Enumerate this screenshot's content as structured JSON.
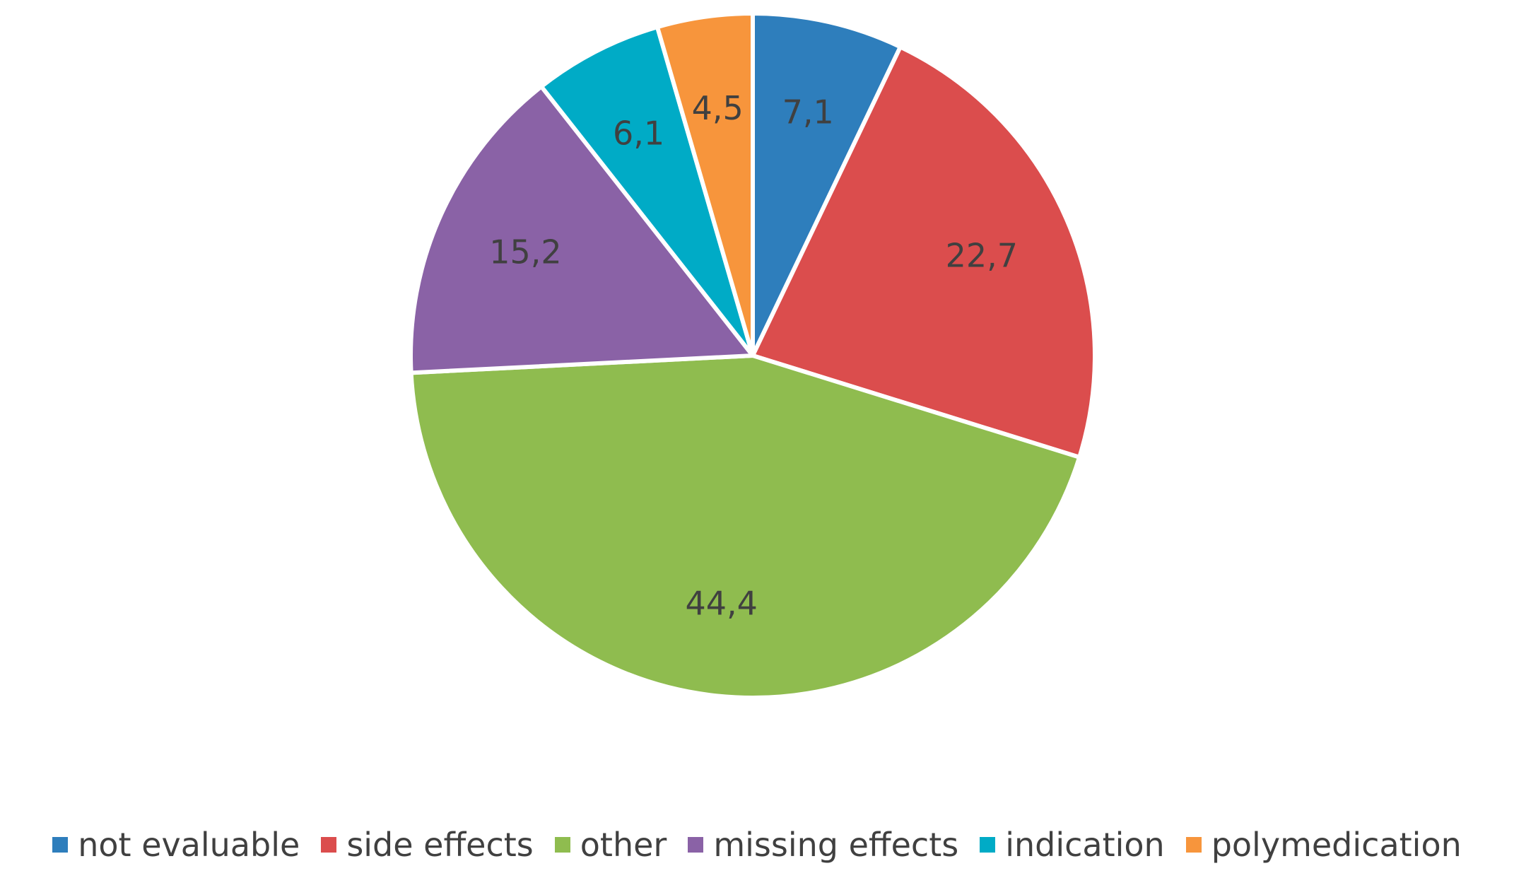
{
  "chart_data": {
    "type": "pie",
    "categories": [
      "not evaluable",
      "side effects",
      "other",
      "missing effects",
      "indication",
      "polymedication"
    ],
    "values": [
      7.1,
      22.7,
      44.4,
      15.2,
      6.1,
      4.5
    ],
    "value_labels": [
      "7,1",
      "22,7",
      "44,4",
      "15,2",
      "6,1",
      "4,5"
    ],
    "colors": [
      "#2e7ebc",
      "#db4d4d",
      "#8fbc4f",
      "#8a62a6",
      "#00abc6",
      "#f7953c"
    ],
    "start_angle": "12 o'clock",
    "direction": "clockwise",
    "legend_position": "bottom",
    "title": ""
  }
}
